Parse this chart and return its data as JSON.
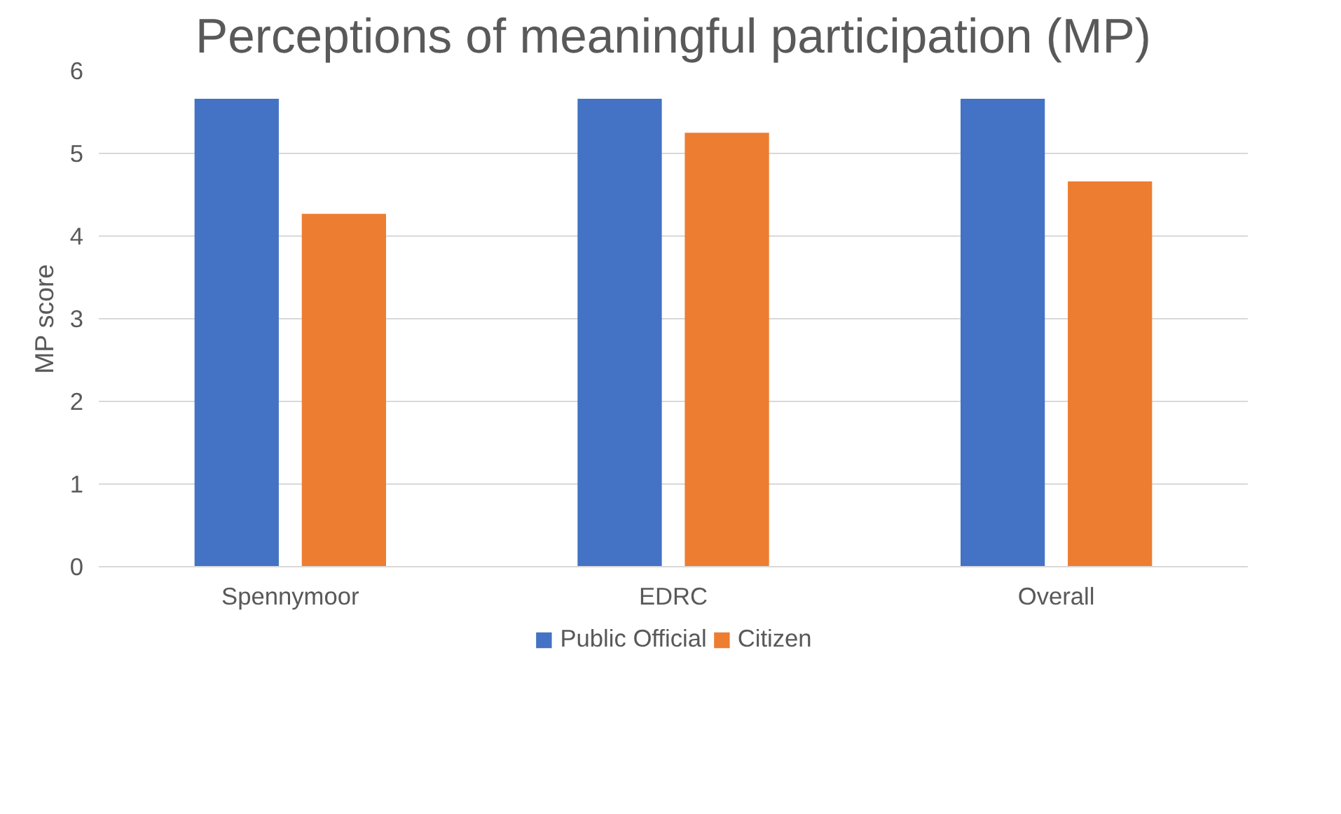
{
  "chart_data": {
    "type": "bar",
    "title": "Perceptions of meaningful participation (MP)",
    "ylabel": "MP score",
    "categories": [
      "Spennymoor",
      "EDRC",
      "Overall"
    ],
    "series": [
      {
        "name": "Public Official",
        "color": "#4472c4",
        "values": [
          5.66,
          5.66,
          5.66
        ]
      },
      {
        "name": "Citizen",
        "color": "#ed7d31",
        "values": [
          4.27,
          5.25,
          4.66
        ]
      }
    ],
    "ylim": [
      0,
      6
    ],
    "yticks": [
      0,
      1,
      2,
      3,
      4,
      5,
      6
    ],
    "grid": "y",
    "legend": "bottom"
  }
}
